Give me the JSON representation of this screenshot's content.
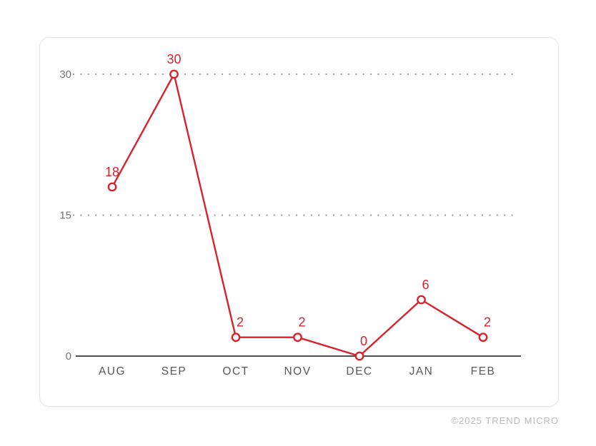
{
  "chart_data": {
    "type": "line",
    "categories": [
      "AUG",
      "SEP",
      "OCT",
      "NOV",
      "DEC",
      "JAN",
      "FEB"
    ],
    "values": [
      18,
      30,
      2,
      2,
      0,
      6,
      2
    ],
    "data_labels": [
      "18",
      "30",
      "2",
      "2",
      "0",
      "6",
      "2"
    ],
    "yticks": [
      0,
      15,
      30
    ],
    "ytick_labels": [
      "0",
      "15",
      "30"
    ],
    "ylim": [
      0,
      30
    ],
    "grid": "horizontal dotted lines at 15 and 30, solid baseline at 0",
    "legend": "none",
    "title": ""
  },
  "colors": {
    "line": "#d7232b",
    "marker_fill": "#ffffff",
    "data_label": "#d7232b",
    "grid_dots": "#9a9a9a",
    "axis_line": "#4f4f4f",
    "ytick_label": "#757575",
    "month_label": "#58585b",
    "card_border": "#e4e4e8",
    "copyright_text": "#b9b9bf"
  },
  "footer": {
    "copyright": "©2025 TREND MICRO"
  }
}
